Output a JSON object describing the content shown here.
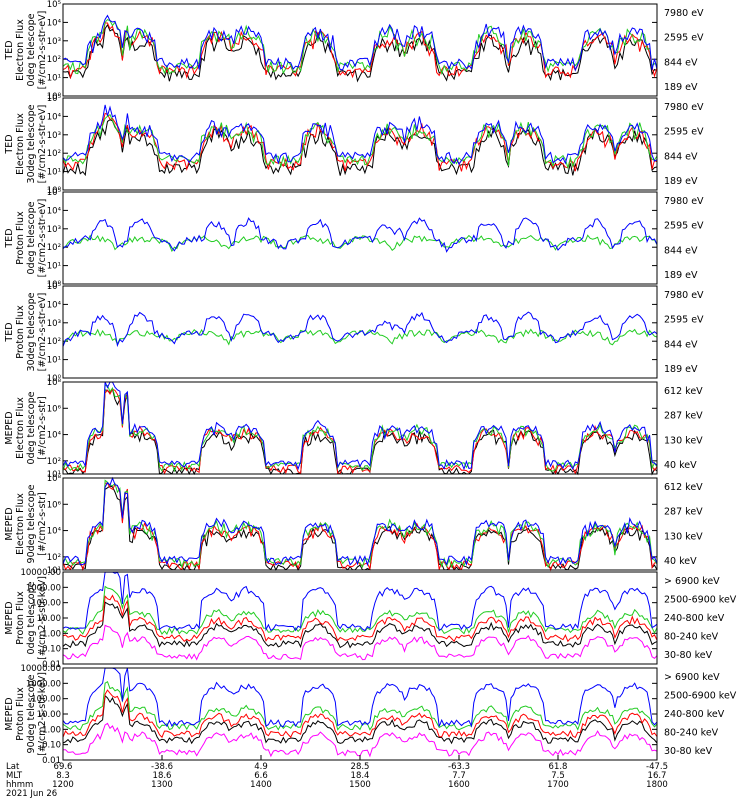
{
  "colors": {
    "blue": "#0000ff",
    "green": "#22cc22",
    "red": "#ff0000",
    "black": "#000000",
    "magenta": "#ff00ff"
  },
  "chart_data": [
    {
      "type": "line",
      "scale": "log",
      "ylim": [
        1,
        100000
      ],
      "ylabel": [
        "TED",
        "Electron Flux",
        "0deg telescope",
        "[#/cm2-s-str-eV]"
      ],
      "yticks": [
        "10^0",
        "10^1",
        "10^2",
        "10^3",
        "10^4",
        "10^5"
      ],
      "series": [
        {
          "name": "7980 eV",
          "color": "black"
        },
        {
          "name": "2595 eV",
          "color": "red"
        },
        {
          "name": "844 eV",
          "color": "green"
        },
        {
          "name": "189 eV",
          "color": "blue"
        }
      ],
      "profile": "ted_e"
    },
    {
      "type": "line",
      "scale": "log",
      "ylim": [
        1,
        100000
      ],
      "ylabel": [
        "TED",
        "Electron Flux",
        "30deg telescope",
        "[#/cm2-s-str-eV]"
      ],
      "yticks": [
        "10^0",
        "10^1",
        "10^2",
        "10^3",
        "10^4",
        "10^5"
      ],
      "series": [
        {
          "name": "7980 eV",
          "color": "black"
        },
        {
          "name": "2595 eV",
          "color": "red"
        },
        {
          "name": "844 eV",
          "color": "green"
        },
        {
          "name": "189 eV",
          "color": "blue"
        }
      ],
      "profile": "ted_e"
    },
    {
      "type": "line",
      "scale": "log",
      "ylim": [
        1,
        100000
      ],
      "ylabel": [
        "TED",
        "Proton Flux",
        "0deg telescope",
        "[#/cm2-s-str-eV]"
      ],
      "yticks": [
        "10^0",
        "10^1",
        "10^2",
        "10^3",
        "10^4",
        "10^5"
      ],
      "series": [
        {
          "name": "7980 eV",
          "color": "black"
        },
        {
          "name": "2595 eV",
          "color": "red"
        },
        {
          "name": "844 eV",
          "color": "green"
        },
        {
          "name": "189 eV",
          "color": "blue"
        }
      ],
      "profile": "ted_p"
    },
    {
      "type": "line",
      "scale": "log",
      "ylim": [
        1,
        100000
      ],
      "ylabel": [
        "TED",
        "Proton Flux",
        "30deg telescope",
        "[#/cm2-s-str-eV]"
      ],
      "yticks": [
        "10^0",
        "10^1",
        "10^2",
        "10^3",
        "10^4",
        "10^5"
      ],
      "series": [
        {
          "name": "7980 eV",
          "color": "black"
        },
        {
          "name": "2595 eV",
          "color": "red"
        },
        {
          "name": "844 eV",
          "color": "green"
        },
        {
          "name": "189 eV",
          "color": "blue"
        }
      ],
      "profile": "ted_p"
    },
    {
      "type": "line",
      "scale": "log",
      "ylim": [
        10,
        100000000
      ],
      "ylabel": [
        "MEPED",
        "Electron Flux",
        "0deg telescope",
        "[#/cm2-s-str]"
      ],
      "yticks": [
        "10^1",
        "10^2",
        "10^4",
        "10^6",
        "10^8"
      ],
      "series": [
        {
          "name": "612 keV",
          "color": "black"
        },
        {
          "name": "287 keV",
          "color": "red"
        },
        {
          "name": "130 keV",
          "color": "green"
        },
        {
          "name": "40 keV",
          "color": "blue"
        }
      ],
      "profile": "mep_e0"
    },
    {
      "type": "line",
      "scale": "log",
      "ylim": [
        10,
        100000000
      ],
      "ylabel": [
        "MEPED",
        "Electron Flux",
        "90deg telescope",
        "[#/cm2-s-str]"
      ],
      "yticks": [
        "10^1",
        "10^2",
        "10^4",
        "10^6",
        "10^8"
      ],
      "series": [
        {
          "name": "612 keV",
          "color": "black"
        },
        {
          "name": "287 keV",
          "color": "red"
        },
        {
          "name": "130 keV",
          "color": "green"
        },
        {
          "name": "40 keV",
          "color": "blue"
        }
      ],
      "profile": "mep_e90"
    },
    {
      "type": "line",
      "scale": "log",
      "ylim": [
        0.01,
        10000
      ],
      "ylabel": [
        "MEPED",
        "Proton Flux",
        "0deg telescope",
        "[#/cm2-s-str-keV]"
      ],
      "yticks": [
        "0.01",
        "0.10",
        "1.00",
        "10.00",
        "100.00",
        "1000.00",
        "10000.00"
      ],
      "series": [
        {
          "name": "> 6900 keV",
          "color": "magenta"
        },
        {
          "name": "2500-6900 keV",
          "color": "black"
        },
        {
          "name": "240-800 keV",
          "color": "red"
        },
        {
          "name": "80-240 keV",
          "color": "green"
        },
        {
          "name": "30-80 keV",
          "color": "blue"
        }
      ],
      "profile": "mep_p"
    },
    {
      "type": "line",
      "scale": "log",
      "ylim": [
        0.01,
        10000
      ],
      "ylabel": [
        "MEPED",
        "Proton Flux",
        "90deg telescope",
        "[#/cm2-s-str-keV]"
      ],
      "yticks": [
        "0.01",
        "0.10",
        "1.00",
        "10.00",
        "100.00",
        "1000.00",
        "10000.00"
      ],
      "series": [
        {
          "name": "> 6900 keV",
          "color": "magenta"
        },
        {
          "name": "2500-6900 keV",
          "color": "black"
        },
        {
          "name": "240-800 keV",
          "color": "red"
        },
        {
          "name": "80-240 keV",
          "color": "green"
        },
        {
          "name": "30-80 keV",
          "color": "blue"
        }
      ],
      "profile": "mep_p"
    }
  ],
  "xaxis": {
    "row_labels": [
      "Lat",
      "MLT",
      "hhmm",
      "2021 Jun 26"
    ],
    "ticks": [
      {
        "lat": "69.6",
        "mlt": "8.3",
        "hhmm": "1200"
      },
      {
        "lat": "-38.6",
        "mlt": "18.6",
        "hhmm": "1300"
      },
      {
        "lat": "4.9",
        "mlt": "6.6",
        "hhmm": "1400"
      },
      {
        "lat": "28.5",
        "mlt": "18.4",
        "hhmm": "1500"
      },
      {
        "lat": "-63.3",
        "mlt": "7.7",
        "hhmm": "1600"
      },
      {
        "lat": "61.8",
        "mlt": "7.5",
        "hhmm": "1700"
      },
      {
        "lat": "-47.5",
        "mlt": "16.7",
        "hhmm": "1800"
      }
    ]
  }
}
